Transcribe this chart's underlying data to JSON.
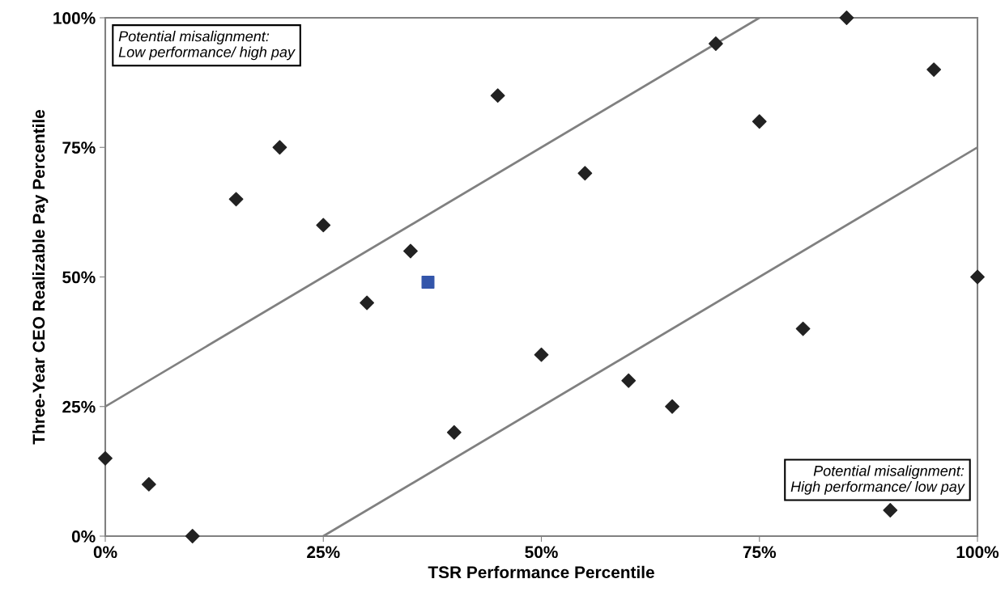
{
  "chart_data": {
    "type": "scatter",
    "xlabel": "TSR Performance Percentile",
    "ylabel": "Three-Year CEO Realizable Pay Percentile",
    "xlim": [
      0,
      100
    ],
    "ylim": [
      0,
      100
    ],
    "xticks": [
      {
        "value": 0,
        "label": "0%"
      },
      {
        "value": 25,
        "label": "25%"
      },
      {
        "value": 50,
        "label": "50%"
      },
      {
        "value": 75,
        "label": "75%"
      },
      {
        "value": 100,
        "label": "100%"
      }
    ],
    "yticks": [
      {
        "value": 0,
        "label": "0%"
      },
      {
        "value": 25,
        "label": "25%"
      },
      {
        "value": 50,
        "label": "50%"
      },
      {
        "value": 75,
        "label": "75%"
      },
      {
        "value": 100,
        "label": "100%"
      }
    ],
    "grid": false,
    "legend": false,
    "series": [
      {
        "marker": "diamond",
        "color": "#222222",
        "x": [
          0,
          5,
          10,
          15,
          20,
          25,
          30,
          35,
          40,
          45,
          50,
          55,
          60,
          65,
          70,
          75,
          80,
          85,
          90,
          95,
          100
        ],
        "values": [
          15,
          10,
          0,
          65,
          75,
          60,
          45,
          55,
          20,
          85,
          35,
          70,
          30,
          25,
          95,
          80,
          40,
          100,
          5,
          90,
          50
        ]
      },
      {
        "marker": "square",
        "color": "#3355aa",
        "x": [
          37
        ],
        "values": [
          49
        ]
      },
      {
        "type": "line",
        "marker": "none",
        "line_style": "solid",
        "color": "#808080",
        "x": [
          0,
          75
        ],
        "values": [
          25,
          100
        ]
      },
      {
        "type": "line",
        "marker": "none",
        "line_style": "solid",
        "color": "#808080",
        "x": [
          25,
          100
        ],
        "values": [
          0,
          75
        ]
      }
    ],
    "annotations": [
      "Potential misalignment:\nLow performance/ high pay",
      "Potential misalignment:\nHigh performance/ low pay"
    ]
  }
}
